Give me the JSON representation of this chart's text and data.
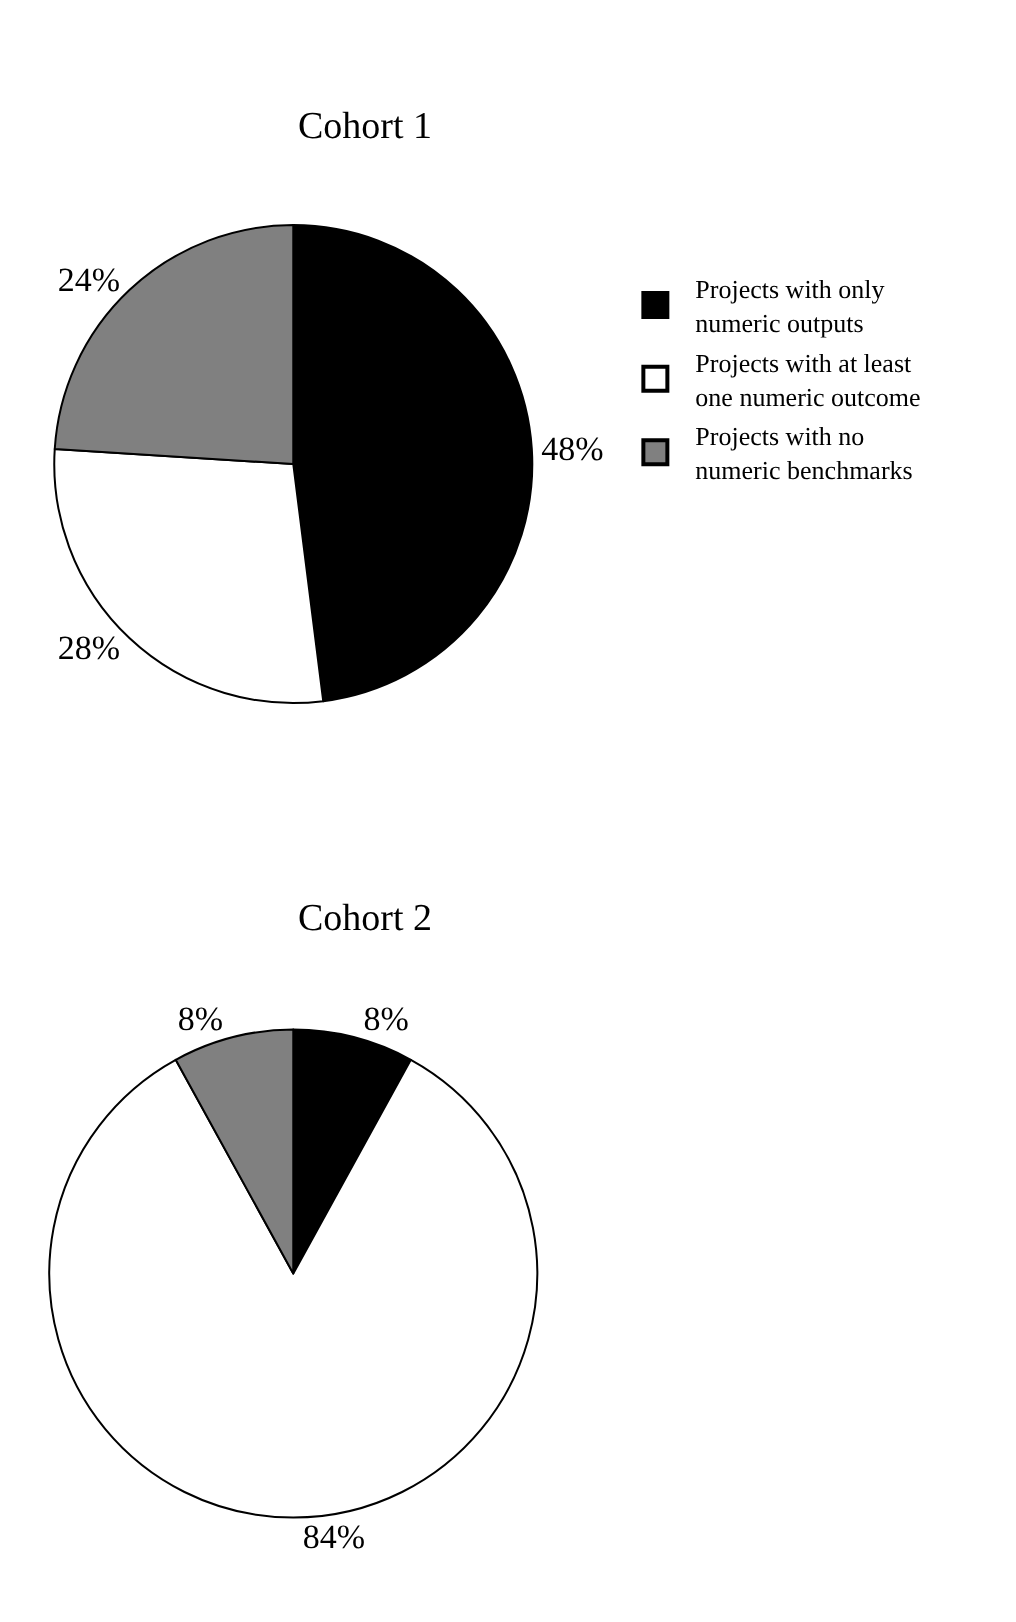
{
  "chart_data": [
    {
      "type": "pie",
      "title": "Cohort 1",
      "categories": [
        "Projects with only numeric outputs",
        "Projects with at least one numeric outcome",
        "Projects with no numeric benchmarks"
      ],
      "values": [
        48,
        28,
        24
      ],
      "colors": [
        "#000000",
        "#ffffff",
        "#808080"
      ],
      "value_labels": [
        "48%",
        "28%",
        "24%"
      ],
      "legend": "right"
    },
    {
      "type": "pie",
      "title": "Cohort 2",
      "categories": [
        null,
        null,
        null
      ],
      "values": [
        8,
        84,
        8
      ],
      "colors": [
        "#000000",
        "#ffffff",
        "#808080"
      ],
      "value_labels": [
        "8%",
        "84%",
        "8%"
      ]
    }
  ]
}
